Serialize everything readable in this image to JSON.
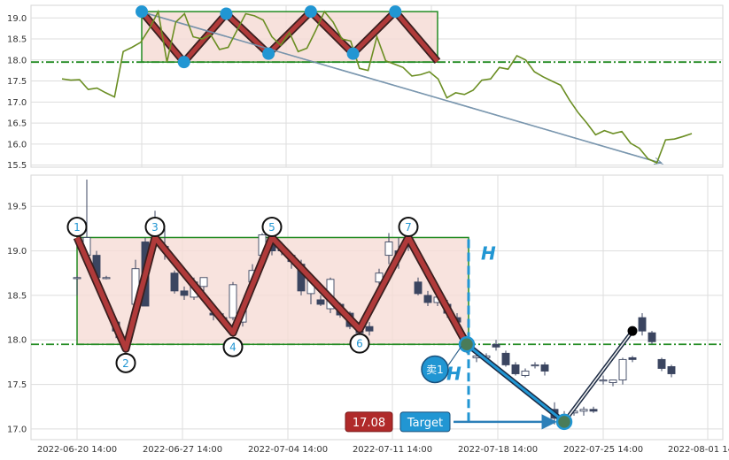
{
  "chart_data": [
    {
      "type": "line",
      "panel": "overview",
      "ylim": [
        15.45,
        19.3
      ],
      "yticks": [
        "15.5",
        "16.0",
        "16.5",
        "17.0",
        "17.5",
        "18.0",
        "18.5",
        "19.0"
      ],
      "grid": true,
      "series": [
        {
          "color": "#6b8e23",
          "values": [
            17.55,
            17.52,
            17.53,
            17.3,
            17.33,
            17.22,
            17.12,
            18.2,
            18.3,
            18.42,
            18.75,
            19.15,
            17.95,
            18.9,
            19.1,
            18.55,
            18.5,
            18.6,
            18.25,
            18.3,
            18.7,
            19.1,
            19.05,
            18.95,
            18.55,
            18.35,
            18.65,
            18.2,
            18.28,
            18.7,
            19.15,
            18.9,
            18.5,
            18.45,
            17.8,
            17.75,
            18.55,
            17.98,
            17.9,
            17.82,
            17.62,
            17.65,
            17.72,
            17.55,
            17.1,
            17.22,
            17.18,
            17.28,
            17.52,
            17.55,
            17.82,
            17.78,
            18.1,
            18.0,
            17.72,
            17.6,
            17.5,
            17.4,
            17.05,
            16.75,
            16.5,
            16.22,
            16.32,
            16.25,
            16.3,
            16.02,
            15.9,
            15.65,
            15.55,
            16.1,
            16.12,
            16.18,
            16.25
          ]
        }
      ],
      "pattern": {
        "color": "#2196d3",
        "pivots": [
          19.15,
          17.95,
          19.1,
          18.15,
          19.15,
          18.15,
          19.15,
          17.97
        ]
      },
      "support_level": 17.95
    },
    {
      "type": "candlestick",
      "panel": "main",
      "ylim": [
        16.88,
        19.85
      ],
      "yticks": [
        "17.0",
        "17.5",
        "18.0",
        "18.5",
        "19.0",
        "19.5"
      ],
      "xticks": [
        "2022-06-20 14:00",
        "2022-06-27 14:00",
        "2022-07-04 14:00",
        "2022-07-11 14:00",
        "2022-07-18 14:00",
        "2022-07-25 14:00",
        "2022-08-01 14:00"
      ],
      "grid": true,
      "candles": [
        [
          18.7,
          18.72,
          18.5,
          18.7
        ],
        [
          18.95,
          19.8,
          18.9,
          19.15
        ],
        [
          18.95,
          19.0,
          18.7,
          18.7
        ],
        [
          18.7,
          18.72,
          18.68,
          18.7
        ],
        [
          18.2,
          18.25,
          18.02,
          18.1
        ],
        [
          17.9,
          18.0,
          17.88,
          17.95
        ],
        [
          18.4,
          18.9,
          18.2,
          18.8
        ],
        [
          19.1,
          19.15,
          18.38,
          18.38
        ],
        [
          19.2,
          19.45,
          19.1,
          19.25
        ],
        [
          19.05,
          19.25,
          18.9,
          19.0
        ],
        [
          18.75,
          18.78,
          18.52,
          18.55
        ],
        [
          18.55,
          18.6,
          18.45,
          18.5
        ],
        [
          18.48,
          18.7,
          18.45,
          18.65
        ],
        [
          18.6,
          18.7,
          18.5,
          18.7
        ],
        [
          18.3,
          18.35,
          18.22,
          18.28
        ],
        [
          18.22,
          18.3,
          18.18,
          18.25
        ],
        [
          18.25,
          18.65,
          18.22,
          18.62
        ],
        [
          18.2,
          18.4,
          18.15,
          18.35
        ],
        [
          18.65,
          18.85,
          18.6,
          18.78
        ],
        [
          18.95,
          19.2,
          18.9,
          19.18
        ],
        [
          19.12,
          19.15,
          18.95,
          19.0
        ],
        [
          19.05,
          19.1,
          18.95,
          19.0
        ],
        [
          18.95,
          18.95,
          18.8,
          18.88
        ],
        [
          18.85,
          18.9,
          18.5,
          18.55
        ],
        [
          18.52,
          18.7,
          18.4,
          18.7
        ],
        [
          18.45,
          18.5,
          18.38,
          18.4
        ],
        [
          18.35,
          18.7,
          18.3,
          18.68
        ],
        [
          18.4,
          18.42,
          18.25,
          18.28
        ],
        [
          18.3,
          18.32,
          18.12,
          18.15
        ],
        [
          18.1,
          18.2,
          18.05,
          18.08
        ],
        [
          18.15,
          18.2,
          18.05,
          18.1
        ],
        [
          18.65,
          18.8,
          18.6,
          18.75
        ],
        [
          18.95,
          19.2,
          18.85,
          19.1
        ],
        [
          19.0,
          19.15,
          18.8,
          18.95
        ],
        [
          19.2,
          19.25,
          19.0,
          19.1
        ],
        [
          18.65,
          18.7,
          18.5,
          18.52
        ],
        [
          18.5,
          18.55,
          18.38,
          18.42
        ],
        [
          18.42,
          18.55,
          18.38,
          18.48
        ],
        [
          18.4,
          18.45,
          18.25,
          18.3
        ],
        [
          18.25,
          18.3,
          18.15,
          18.2
        ],
        [
          17.92,
          18.02,
          17.85,
          17.95
        ],
        [
          17.8,
          17.85,
          17.75,
          17.82
        ],
        [
          17.8,
          17.85,
          17.78,
          17.82
        ],
        [
          17.95,
          18.0,
          17.88,
          17.92
        ],
        [
          17.85,
          17.88,
          17.7,
          17.72
        ],
        [
          17.72,
          17.75,
          17.6,
          17.62
        ],
        [
          17.6,
          17.68,
          17.58,
          17.65
        ],
        [
          17.72,
          17.75,
          17.68,
          17.72
        ],
        [
          17.72,
          17.75,
          17.6,
          17.65
        ],
        [
          17.22,
          17.3,
          17.05,
          17.12
        ],
        [
          17.1,
          17.2,
          17.05,
          17.15
        ],
        [
          17.18,
          17.22,
          17.15,
          17.2
        ],
        [
          17.2,
          17.25,
          17.15,
          17.22
        ],
        [
          17.22,
          17.25,
          17.18,
          17.2
        ],
        [
          17.55,
          17.6,
          17.5,
          17.55
        ],
        [
          17.52,
          17.55,
          17.48,
          17.55
        ],
        [
          17.55,
          17.8,
          17.5,
          17.78
        ],
        [
          17.8,
          17.82,
          17.75,
          17.78
        ],
        [
          18.25,
          18.3,
          18.05,
          18.1
        ],
        [
          18.08,
          18.1,
          17.95,
          17.98
        ],
        [
          17.78,
          17.8,
          17.65,
          17.68
        ],
        [
          17.7,
          17.72,
          17.58,
          17.62
        ]
      ],
      "pattern": {
        "pivots": [
          {
            "label": "1",
            "i": 0,
            "price": 19.15
          },
          {
            "label": "2",
            "i": 5,
            "price": 17.9
          },
          {
            "label": "3",
            "i": 8,
            "price": 19.15
          },
          {
            "label": "4",
            "i": 16,
            "price": 18.08
          },
          {
            "label": "5",
            "i": 20,
            "price": 19.15
          },
          {
            "label": "6",
            "i": 29,
            "price": 18.12
          },
          {
            "label": "7",
            "i": 34,
            "price": 19.15
          },
          {
            "i": 40,
            "price": 17.95
          }
        ],
        "projection": [
          {
            "i": 40,
            "price": 17.95
          },
          {
            "i": 50,
            "price": 17.08
          },
          {
            "i": 57,
            "price": 18.1
          }
        ],
        "support_level": 17.95,
        "resistance_level": 19.15,
        "height_label": "H",
        "sell_label": "卖1",
        "target_value": "17.08",
        "target_label": "Target"
      }
    }
  ]
}
